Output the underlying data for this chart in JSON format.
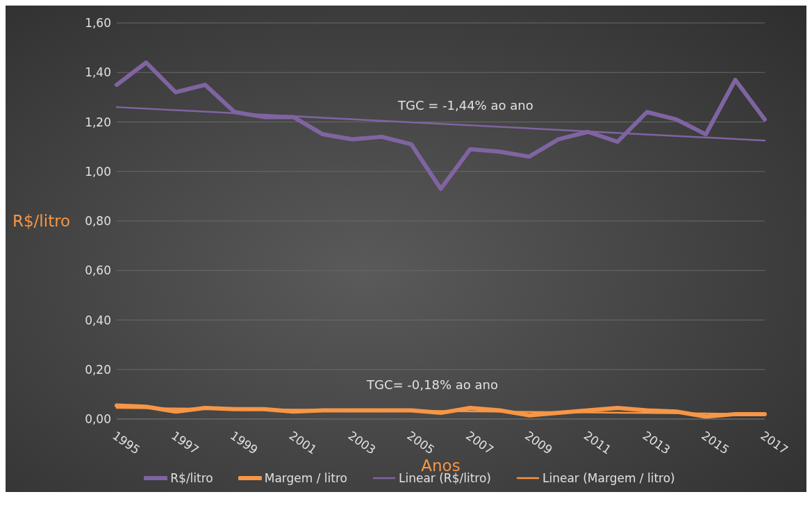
{
  "chart_data": {
    "type": "line",
    "xlabel": "Anos",
    "ylabel": "R$/litro",
    "categories": [
      "1995",
      null,
      "1997",
      null,
      "1999",
      null,
      "2001",
      null,
      "2003",
      null,
      "2005",
      null,
      "2007",
      null,
      "2009",
      null,
      "2011",
      null,
      "2013",
      null,
      "2015",
      null,
      "2017"
    ],
    "series": [
      {
        "name": "R$/litro",
        "color": "#8064a2",
        "values": [
          1.35,
          1.44,
          1.32,
          1.35,
          1.24,
          1.22,
          1.22,
          1.15,
          1.13,
          1.14,
          1.11,
          0.93,
          1.09,
          1.08,
          1.06,
          1.13,
          1.16,
          1.12,
          1.24,
          1.21,
          1.15,
          1.37,
          1.21
        ]
      },
      {
        "name": "Margem / litro",
        "color": "#f79646",
        "values": [
          0.055,
          0.05,
          0.03,
          0.045,
          0.04,
          0.04,
          0.03,
          0.035,
          0.035,
          0.035,
          0.035,
          0.025,
          0.045,
          0.035,
          0.015,
          0.025,
          0.035,
          0.045,
          0.035,
          0.03,
          0.01,
          0.02,
          0.02
        ]
      },
      {
        "name": "Linear (R$/litro)",
        "color": "#8064a2",
        "values": [
          1.26,
          null,
          null,
          null,
          null,
          null,
          null,
          null,
          null,
          null,
          null,
          null,
          null,
          null,
          null,
          null,
          null,
          null,
          null,
          null,
          null,
          null,
          1.125
        ]
      },
      {
        "name": "Linear (Margem / litro)",
        "color": "#f79646",
        "values": [
          0.045,
          null,
          null,
          null,
          null,
          null,
          null,
          null,
          null,
          null,
          null,
          null,
          null,
          null,
          null,
          null,
          null,
          null,
          null,
          null,
          null,
          null,
          0.02
        ]
      }
    ],
    "ylim": [
      0,
      1.6
    ],
    "yticks": [
      {
        "value": 0,
        "label": "0,00"
      },
      {
        "value": 0.2,
        "label": "0,20"
      },
      {
        "value": 0.4,
        "label": "0,40"
      },
      {
        "value": 0.6,
        "label": "0,60"
      },
      {
        "value": 0.8,
        "label": "0,80"
      },
      {
        "value": 1,
        "label": "1,00"
      },
      {
        "value": 1.2,
        "label": "1,20"
      },
      {
        "value": 1.4,
        "label": "1,40"
      },
      {
        "value": 1.6,
        "label": "1,60"
      }
    ],
    "grid": "y",
    "legend": "bottom",
    "marker": "none",
    "line_style": "solid",
    "annotations": [
      "TGC = -1,44% ao ano",
      "TGC= -0,18% ao ano"
    ]
  }
}
